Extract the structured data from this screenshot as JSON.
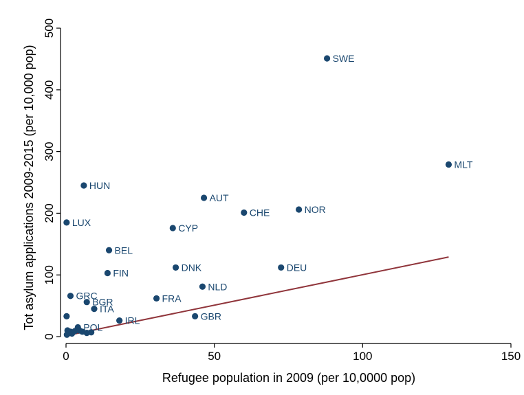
{
  "chart_data": {
    "type": "scatter",
    "xlabel": "Refugee population in 2009 (per 10,0000 pop)",
    "ylabel": "Tot asylum applications 2009-2015 (per 10,000 pop)",
    "xlim": [
      0,
      150
    ],
    "ylim": [
      0,
      500
    ],
    "xticks": [
      0,
      50,
      100,
      150
    ],
    "yticks": [
      0,
      100,
      200,
      300,
      400,
      500
    ],
    "grid": false,
    "legend": "none",
    "point_color": "#1a476f",
    "fit_line_color": "#90353b",
    "points": [
      {
        "label": "SWE",
        "x": 88,
        "y": 451
      },
      {
        "label": "MLT",
        "x": 129,
        "y": 279
      },
      {
        "label": "HUN",
        "x": 6,
        "y": 245
      },
      {
        "label": "AUT",
        "x": 46.5,
        "y": 225
      },
      {
        "label": "NOR",
        "x": 78.5,
        "y": 206
      },
      {
        "label": "CHE",
        "x": 60,
        "y": 201
      },
      {
        "label": "LUX",
        "x": 0.2,
        "y": 185
      },
      {
        "label": "CYP",
        "x": 36,
        "y": 176
      },
      {
        "label": "BEL",
        "x": 14.5,
        "y": 140
      },
      {
        "label": "DNK",
        "x": 37,
        "y": 112
      },
      {
        "label": "DEU",
        "x": 72.5,
        "y": 112
      },
      {
        "label": "FIN",
        "x": 14,
        "y": 103
      },
      {
        "label": "NLD",
        "x": 46,
        "y": 81
      },
      {
        "label": "GRC",
        "x": 1.5,
        "y": 66
      },
      {
        "label": "FRA",
        "x": 30.5,
        "y": 62
      },
      {
        "label": "BGR",
        "x": 7,
        "y": 56
      },
      {
        "label": "ITA",
        "x": 9.5,
        "y": 45
      },
      {
        "label": "GBR",
        "x": 43.5,
        "y": 33
      },
      {
        "label": "IRL",
        "x": 18,
        "y": 26
      },
      {
        "label": "POL",
        "x": 4,
        "y": 15
      },
      {
        "label": "",
        "x": 0.2,
        "y": 33
      },
      {
        "label": "",
        "x": 0.5,
        "y": 10
      },
      {
        "label": "",
        "x": 1,
        "y": 6
      },
      {
        "label": "",
        "x": 1.5,
        "y": 8
      },
      {
        "label": "",
        "x": 2,
        "y": 5
      },
      {
        "label": "",
        "x": 0.3,
        "y": 3
      },
      {
        "label": "",
        "x": 3,
        "y": 9
      },
      {
        "label": "",
        "x": 4.5,
        "y": 10
      },
      {
        "label": "",
        "x": 5.5,
        "y": 8
      },
      {
        "label": "",
        "x": 7,
        "y": 6
      },
      {
        "label": "",
        "x": 8.5,
        "y": 7
      }
    ],
    "fit_line": {
      "x": [
        0,
        129
      ],
      "y": [
        1.5,
        129
      ]
    }
  }
}
